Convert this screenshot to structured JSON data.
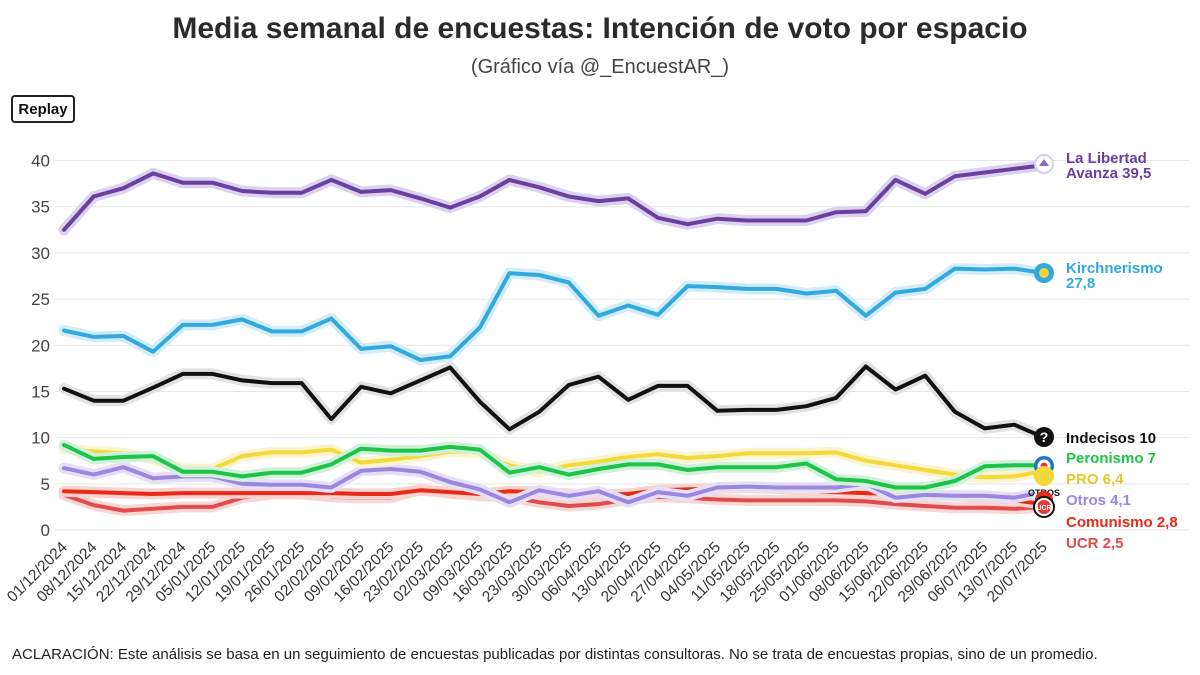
{
  "title": "Media semanal de encuestas: Intención de voto por espacio",
  "subtitle": "(Gráfico vía @_EncuestAR_)",
  "replay_label": "Replay",
  "note": "ACLARACIÓN: Este análisis se basa en un seguimiento de encuestas publicadas por distintas consultoras. No se trata de encuestas propias, sino de un promedio.",
  "chart_data": {
    "type": "line",
    "title": "Media semanal de encuestas: Intención de voto por espacio",
    "xlabel": "",
    "ylabel": "",
    "ylim": [
      0,
      41
    ],
    "yticks": [
      0,
      5,
      10,
      15,
      20,
      25,
      30,
      35,
      40
    ],
    "grid": true,
    "categories": [
      "01/12/2024",
      "08/12/2024",
      "15/12/2024",
      "22/12/2024",
      "29/12/2024",
      "05/01/2025",
      "12/01/2025",
      "19/01/2025",
      "26/01/2025",
      "02/02/2025",
      "09/02/2025",
      "16/02/2025",
      "23/02/2025",
      "02/03/2025",
      "09/03/2025",
      "16/03/2025",
      "23/03/2025",
      "30/03/2025",
      "06/04/2025",
      "13/04/2025",
      "20/04/2025",
      "27/04/2025",
      "04/05/2025",
      "11/05/2025",
      "18/05/2025",
      "25/05/2025",
      "01/06/2025",
      "08/06/2025",
      "15/06/2025",
      "22/06/2025",
      "29/06/2025",
      "06/07/2025",
      "13/07/2025",
      "20/07/2025"
    ],
    "series": [
      {
        "name": "La Libertad Avanza",
        "label_lines": [
          "La Libertad",
          "Avanza 39,5"
        ],
        "color": "#6a3fa0",
        "glow": "#ddd2ee",
        "icon": "lla-icon",
        "values": [
          32.5,
          36.1,
          37,
          38.6,
          37.6,
          37.6,
          36.7,
          36.5,
          36.5,
          37.9,
          36.6,
          36.8,
          35.9,
          34.9,
          36.1,
          37.9,
          37.1,
          36.1,
          35.6,
          35.9,
          33.8,
          33.1,
          33.7,
          33.5,
          33.5,
          33.5,
          34.4,
          34.5,
          37.9,
          36.4,
          38.3,
          38.7,
          39.1,
          39.5
        ]
      },
      {
        "name": "Kirchnerismo",
        "label_lines": [
          "Kirchnerismo",
          "27,8"
        ],
        "color": "#31a9de",
        "glow": "#d2ecf8",
        "icon": "kirchnerismo-icon",
        "values": [
          21.6,
          20.9,
          21,
          19.3,
          22.2,
          22.2,
          22.8,
          21.5,
          21.5,
          22.9,
          19.6,
          19.9,
          18.4,
          18.8,
          21.9,
          27.8,
          27.6,
          26.8,
          23.2,
          24.3,
          23.3,
          26.4,
          26.3,
          26.1,
          26.1,
          25.6,
          25.9,
          23.2,
          25.7,
          26.1,
          28.3,
          28.2,
          28.3,
          27.8
        ]
      },
      {
        "name": "Indecisos",
        "label_lines": [
          "Indecisos 10"
        ],
        "color": "#111111",
        "glow": "#e2e2e2",
        "icon": "question-icon",
        "values": [
          15.3,
          14,
          14,
          15.4,
          16.9,
          16.9,
          16.2,
          15.9,
          15.9,
          12,
          15.5,
          14.8,
          16.2,
          17.6,
          13.9,
          10.9,
          12.8,
          15.7,
          16.6,
          14.1,
          15.6,
          15.6,
          12.9,
          13,
          13,
          13.4,
          14.3,
          17.7,
          15.2,
          16.7,
          12.8,
          11,
          11.4,
          10
        ]
      },
      {
        "name": "Peronismo",
        "label_lines": [
          "Peronismo 7"
        ],
        "color": "#1cc447",
        "glow": "#d3f1da",
        "icon": "peronismo-icon",
        "values": [
          9.2,
          7.7,
          7.9,
          8,
          6.3,
          6.3,
          5.8,
          6.2,
          6.2,
          7.1,
          8.8,
          8.6,
          8.6,
          9,
          8.7,
          6.2,
          6.8,
          6,
          6.6,
          7.1,
          7.1,
          6.5,
          6.8,
          6.8,
          6.8,
          7.2,
          5.5,
          5.3,
          4.6,
          4.6,
          5.3,
          6.9,
          7,
          7
        ]
      },
      {
        "name": "PRO",
        "label_lines": [
          "PRO 6,4"
        ],
        "color": "#f4d93a",
        "glow": "#fbf4cc",
        "icon": "pro-icon",
        "values": [
          8.8,
          8.5,
          8.3,
          7.7,
          6.6,
          6.6,
          8,
          8.4,
          8.4,
          8.7,
          7.3,
          7.6,
          8,
          8.5,
          8.4,
          7,
          6.3,
          7,
          7.4,
          7.9,
          8.2,
          7.8,
          8,
          8.3,
          8.3,
          8.3,
          8.4,
          7.5,
          7,
          6.5,
          6,
          5.7,
          5.8,
          6.4
        ]
      },
      {
        "name": "Otros",
        "label_lines": [
          "Otros 4,1"
        ],
        "color": "#9b86e0",
        "glow": "#e6e0f7",
        "icon": "otros-icon",
        "values": [
          6.7,
          6,
          6.8,
          5.6,
          5.8,
          5.8,
          5,
          4.9,
          4.9,
          4.6,
          6.4,
          6.6,
          6.3,
          5.2,
          4.4,
          3,
          4.3,
          3.7,
          4.2,
          3,
          4.1,
          3.7,
          4.6,
          4.7,
          4.6,
          4.6,
          4.6,
          5,
          3.5,
          3.8,
          3.7,
          3.7,
          3.5,
          4.1
        ]
      },
      {
        "name": "Comunismo",
        "label_lines": [
          "Comunismo 2,8"
        ],
        "color": "#e82a18",
        "glow": "#f8d3cf",
        "icon": "comunismo-icon",
        "values": [
          4.2,
          4.1,
          4,
          3.9,
          4,
          4,
          4,
          4,
          4,
          4,
          3.9,
          3.9,
          4.3,
          4.1,
          3.9,
          4.2,
          4.1,
          3.9,
          3.8,
          3.9,
          4.3,
          4.4,
          4.5,
          4.6,
          4.5,
          4.3,
          4.1,
          4,
          3.9,
          3.8,
          3.7,
          3.5,
          3.2,
          2.8
        ]
      },
      {
        "name": "UCR",
        "label_lines": [
          "UCR 2,5"
        ],
        "color": "#e24b4b",
        "glow": "#f7d6d6",
        "icon": "ucr-icon",
        "values": [
          3.8,
          2.7,
          2.1,
          2.3,
          2.5,
          2.5,
          3.5,
          3.9,
          3.9,
          3.6,
          3.5,
          3.5,
          4.4,
          4,
          3.7,
          3.6,
          3,
          2.6,
          2.8,
          3.3,
          3.6,
          3.5,
          3.3,
          3.2,
          3.2,
          3.2,
          3.2,
          3.1,
          2.8,
          2.6,
          2.4,
          2.4,
          2.3,
          2.5
        ]
      }
    ]
  }
}
